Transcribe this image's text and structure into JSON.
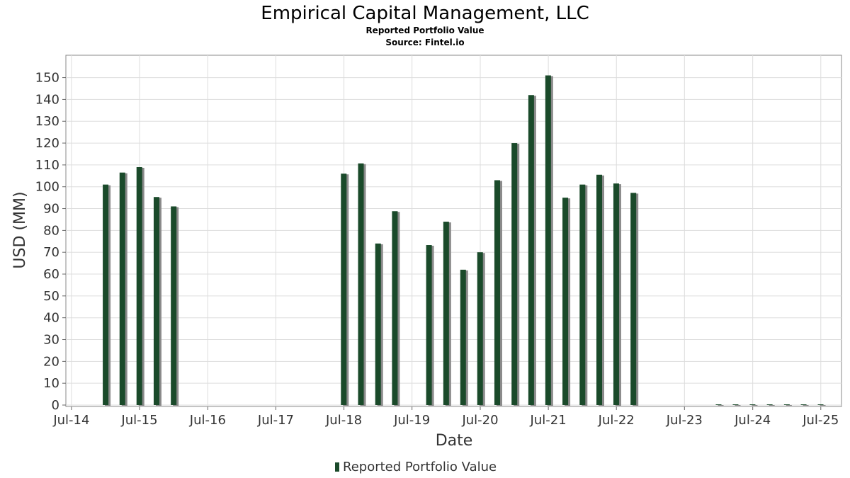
{
  "chart_data": {
    "type": "bar",
    "title": "Empirical Capital Management, LLC",
    "subtitle": "Reported Portfolio Value",
    "source": "Source: Fintel.io",
    "xlabel": "Date",
    "ylabel": "USD (MM)",
    "ylim": [
      0,
      157
    ],
    "yticks": [
      0,
      10,
      20,
      30,
      40,
      50,
      60,
      70,
      80,
      90,
      100,
      110,
      120,
      130,
      140,
      150
    ],
    "xlim": [
      "2014-06-01",
      "2025-10-20"
    ],
    "xticks": [
      {
        "date": "2014-07-01",
        "label": "Jul-14"
      },
      {
        "date": "2015-07-01",
        "label": "Jul-15"
      },
      {
        "date": "2016-07-01",
        "label": "Jul-16"
      },
      {
        "date": "2017-07-01",
        "label": "Jul-17"
      },
      {
        "date": "2018-07-01",
        "label": "Jul-18"
      },
      {
        "date": "2019-07-01",
        "label": "Jul-19"
      },
      {
        "date": "2020-07-01",
        "label": "Jul-20"
      },
      {
        "date": "2021-07-01",
        "label": "Jul-21"
      },
      {
        "date": "2022-07-01",
        "label": "Jul-22"
      },
      {
        "date": "2023-07-01",
        "label": "Jul-23"
      },
      {
        "date": "2024-07-01",
        "label": "Jul-24"
      },
      {
        "date": "2025-07-01",
        "label": "Jul-25"
      }
    ],
    "grid": true,
    "legend_position": "bottom-center",
    "colors": {
      "bar": "#1a4a2a",
      "bar_shadow": "#8a8a8a",
      "grid": "#dddddd",
      "frame": "#888888"
    },
    "series": [
      {
        "name": "Reported Portfolio Value",
        "points": [
          {
            "date": "2014-12-31",
            "value": 101
          },
          {
            "date": "2015-03-31",
            "value": 106.5
          },
          {
            "date": "2015-06-30",
            "value": 109
          },
          {
            "date": "2015-09-30",
            "value": 95.3
          },
          {
            "date": "2015-12-31",
            "value": 91
          },
          {
            "date": "2018-06-30",
            "value": 106
          },
          {
            "date": "2018-09-30",
            "value": 110.7
          },
          {
            "date": "2018-12-31",
            "value": 74
          },
          {
            "date": "2019-03-31",
            "value": 88.8
          },
          {
            "date": "2019-09-30",
            "value": 73.3
          },
          {
            "date": "2019-12-31",
            "value": 84
          },
          {
            "date": "2020-03-31",
            "value": 62
          },
          {
            "date": "2020-06-30",
            "value": 70
          },
          {
            "date": "2020-09-30",
            "value": 103
          },
          {
            "date": "2020-12-31",
            "value": 120
          },
          {
            "date": "2021-03-31",
            "value": 142
          },
          {
            "date": "2021-06-30",
            "value": 151
          },
          {
            "date": "2021-09-30",
            "value": 95
          },
          {
            "date": "2021-12-31",
            "value": 101
          },
          {
            "date": "2022-03-31",
            "value": 105.5
          },
          {
            "date": "2022-06-30",
            "value": 101.5
          },
          {
            "date": "2022-09-30",
            "value": 97.2
          },
          {
            "date": "2023-12-31",
            "value": 0
          },
          {
            "date": "2024-03-31",
            "value": 0
          },
          {
            "date": "2024-06-30",
            "value": 0
          },
          {
            "date": "2024-09-30",
            "value": 0
          },
          {
            "date": "2024-12-31",
            "value": 0
          },
          {
            "date": "2025-03-31",
            "value": 0
          },
          {
            "date": "2025-06-30",
            "value": 0
          }
        ]
      }
    ]
  }
}
